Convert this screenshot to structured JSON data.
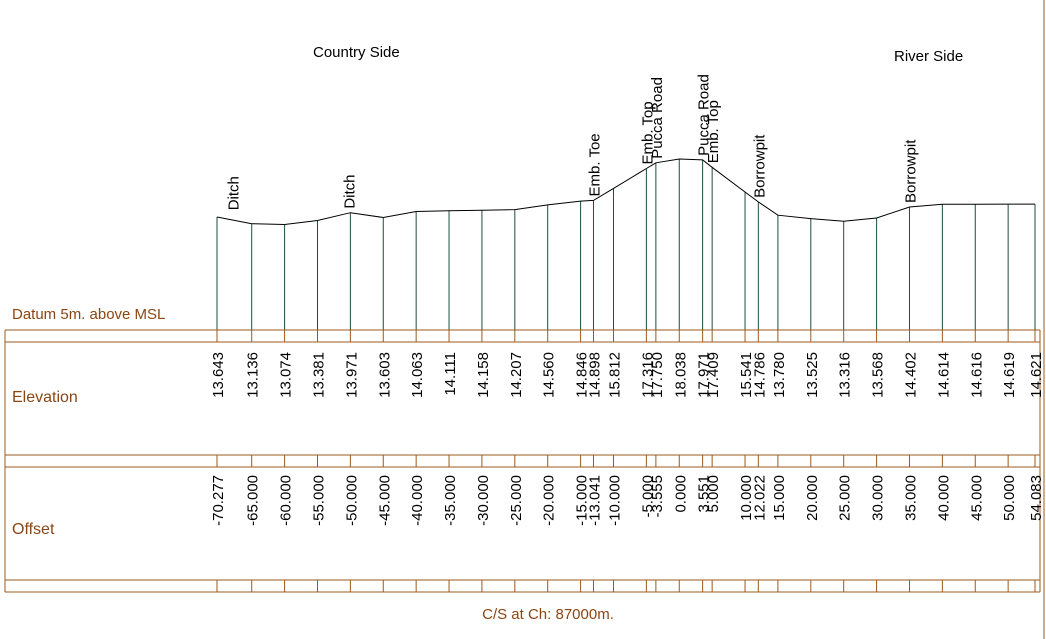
{
  "chart_data": {
    "type": "cross-section",
    "side_labels": {
      "left": "Country Side",
      "right": "River Side"
    },
    "datum_label": "Datum 5m. above MSL",
    "row_labels": {
      "elevation": "Elevation",
      "offset": "Offset"
    },
    "caption": "C/S at Ch: 87000m.",
    "colors": {
      "profile": "#000000",
      "verticals": "#1f4d3a",
      "frame": "#9c5a1c",
      "label_text": "#8b4513"
    },
    "points": [
      {
        "offset": "-70.277",
        "elevation": "13.643",
        "label": ""
      },
      {
        "offset": "-65.000",
        "elevation": "13.136",
        "label": ""
      },
      {
        "offset": "-60.000",
        "elevation": "13.074",
        "label": ""
      },
      {
        "offset": "-55.000",
        "elevation": "13.381",
        "label": ""
      },
      {
        "offset": "-50.000",
        "elevation": "13.971",
        "label": ""
      },
      {
        "offset": "-45.000",
        "elevation": "13.603",
        "label": ""
      },
      {
        "offset": "-40.000",
        "elevation": "14.063",
        "label": ""
      },
      {
        "offset": "-35.000",
        "elevation": "14.111",
        "label": ""
      },
      {
        "offset": "-30.000",
        "elevation": "14.158",
        "label": ""
      },
      {
        "offset": "-25.000",
        "elevation": "14.207",
        "label": ""
      },
      {
        "offset": "-20.000",
        "elevation": "14.560",
        "label": ""
      },
      {
        "offset": "-15.000",
        "elevation": "14.846",
        "label": ""
      },
      {
        "offset": "-13.041",
        "elevation": "14.898",
        "label": "Emb. Toe"
      },
      {
        "offset": "-10.000",
        "elevation": "15.812",
        "label": ""
      },
      {
        "offset": "-5.000",
        "elevation": "17.316",
        "label": "Emb. Top"
      },
      {
        "offset": "-3.555",
        "elevation": "17.750",
        "label": "Pucca Road"
      },
      {
        "offset": "0.000",
        "elevation": "18.038",
        "label": ""
      },
      {
        "offset": "3.551",
        "elevation": "17.971",
        "label": "Pucca Road"
      },
      {
        "offset": "5.000",
        "elevation": "17.409",
        "label": "Emb. Top"
      },
      {
        "offset": "10.000",
        "elevation": "15.541",
        "label": ""
      },
      {
        "offset": "12.022",
        "elevation": "14.786",
        "label": "Borrowpit"
      },
      {
        "offset": "15.000",
        "elevation": "13.780",
        "label": ""
      },
      {
        "offset": "20.000",
        "elevation": "13.525",
        "label": ""
      },
      {
        "offset": "25.000",
        "elevation": "13.316",
        "label": ""
      },
      {
        "offset": "30.000",
        "elevation": "13.568",
        "label": ""
      },
      {
        "offset": "35.000",
        "elevation": "14.402",
        "label": "Borrowpit"
      },
      {
        "offset": "40.000",
        "elevation": "14.614",
        "label": ""
      },
      {
        "offset": "45.000",
        "elevation": "14.616",
        "label": ""
      },
      {
        "offset": "50.000",
        "elevation": "14.619",
        "label": ""
      },
      {
        "offset": "54.083",
        "elevation": "14.621",
        "label": ""
      }
    ],
    "ditches": [
      {
        "label": "Ditch",
        "offset": "-67.6",
        "elevation": "13.85"
      },
      {
        "label": "Ditch",
        "offset": "-50.0",
        "elevation": "13.971"
      }
    ]
  }
}
